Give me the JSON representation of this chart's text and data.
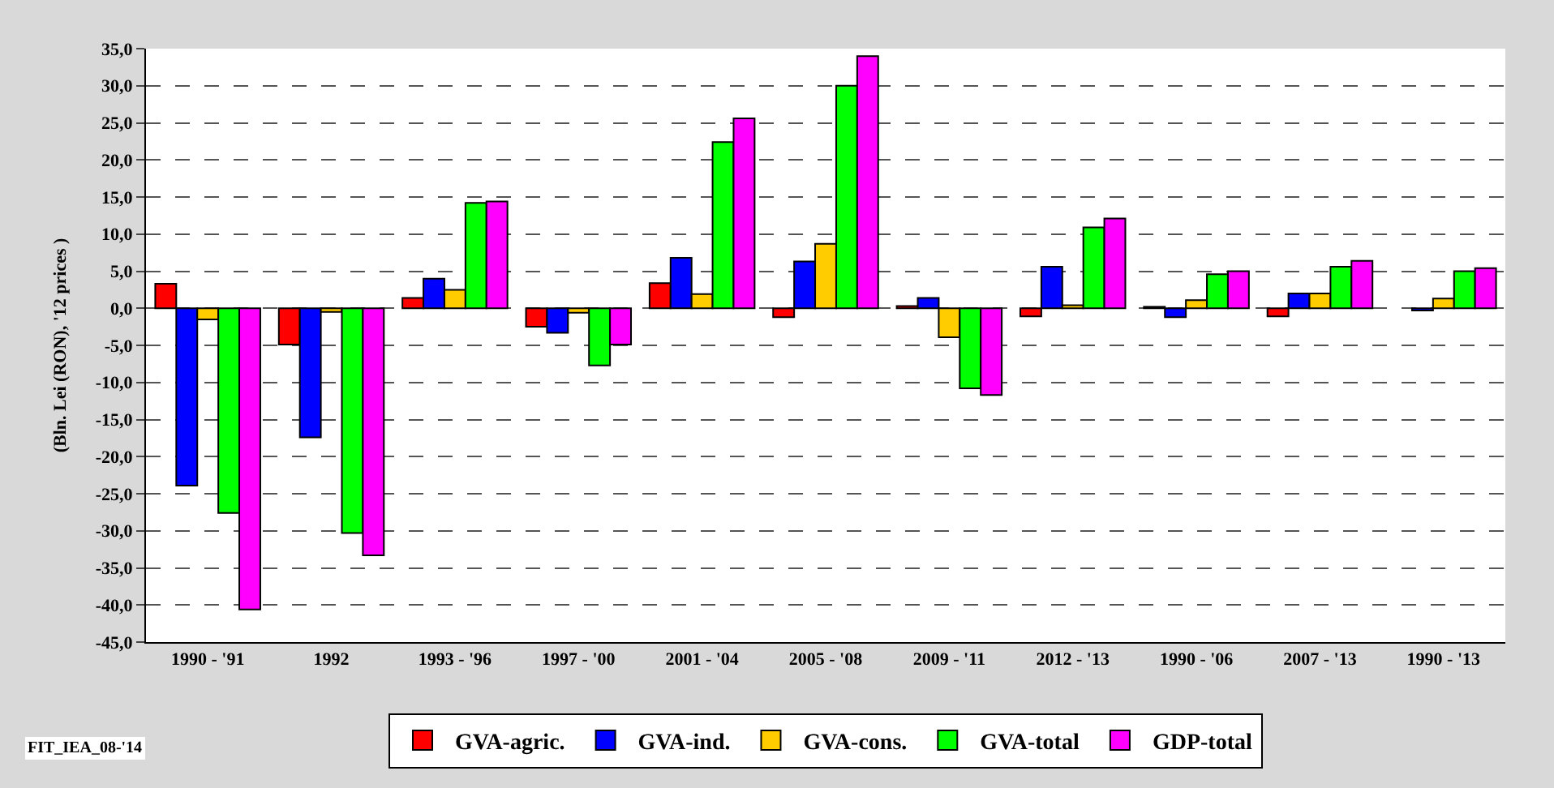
{
  "chart_data": {
    "type": "bar",
    "ylabel": "(Bln. Lei (RON), '12 prices )",
    "annotations": [
      "FIT_IEA_08-'14"
    ],
    "categories": [
      "1990 - '91",
      "1992",
      "1993 - '96",
      "1997 - '00",
      "2001 - '04",
      "2005 - '08",
      "2009 - '11",
      "2012 - '13",
      "1990 - '06",
      "2007 - '13",
      "1990 - '13"
    ],
    "series": [
      {
        "name": "GVA-agric.",
        "color": "#ff0000",
        "values": [
          3.3,
          -4.9,
          1.4,
          -2.5,
          3.4,
          -1.2,
          0.3,
          -1.1,
          0.2,
          -1.1,
          null
        ]
      },
      {
        "name": "GVA-ind.",
        "color": "#0000ff",
        "values": [
          -23.9,
          -17.4,
          4.0,
          -3.3,
          6.8,
          6.3,
          1.4,
          5.6,
          -1.2,
          2.0,
          -0.3
        ]
      },
      {
        "name": "GVA-cons.",
        "color": "#ffcc00",
        "values": [
          -1.5,
          -0.5,
          2.5,
          -0.6,
          1.9,
          8.7,
          -3.9,
          0.4,
          1.1,
          2.0,
          1.3
        ]
      },
      {
        "name": "GVA-total",
        "color": "#00ff00",
        "values": [
          -27.6,
          -30.3,
          14.2,
          -7.7,
          22.4,
          30.0,
          -10.8,
          10.9,
          4.6,
          5.6,
          5.0
        ]
      },
      {
        "name": "GDP-total",
        "color": "#ff00ff",
        "values": [
          -40.6,
          -33.3,
          14.4,
          -4.9,
          25.6,
          34.0,
          -11.7,
          12.1,
          5.0,
          6.4,
          5.4
        ]
      }
    ],
    "ylim": [
      -45,
      35
    ],
    "yticks": [
      {
        "value": 35,
        "label": "35,0"
      },
      {
        "value": 30,
        "label": "30,0"
      },
      {
        "value": 25,
        "label": "25,0"
      },
      {
        "value": 20,
        "label": "20,0"
      },
      {
        "value": 15,
        "label": "15,0"
      },
      {
        "value": 10,
        "label": "10,0"
      },
      {
        "value": 5,
        "label": "5,0"
      },
      {
        "value": 0,
        "label": "0,0"
      },
      {
        "value": -5,
        "label": "-5,0"
      },
      {
        "value": -10,
        "label": "-10,0"
      },
      {
        "value": -15,
        "label": "-15,0"
      },
      {
        "value": -20,
        "label": "-20,0"
      },
      {
        "value": -25,
        "label": "-25,0"
      },
      {
        "value": -30,
        "label": "-30,0"
      },
      {
        "value": -35,
        "label": "-35,0"
      },
      {
        "value": -40,
        "label": "-40,0"
      },
      {
        "value": -45,
        "label": "-45,0"
      }
    ],
    "grid": "y",
    "legend": "bottom"
  }
}
